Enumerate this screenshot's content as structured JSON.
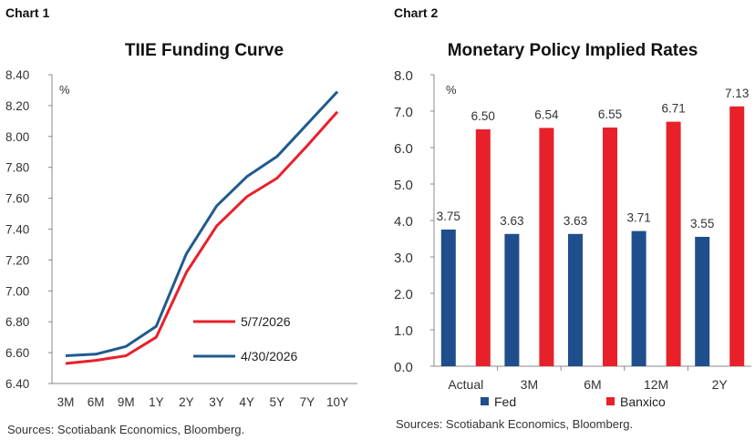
{
  "panels": [
    {
      "label": "Chart 1",
      "source": "Sources: Scotiabank Economics, Bloomberg."
    },
    {
      "label": "Chart 2",
      "source": "Sources: Scotiabank Economics, Bloomberg."
    }
  ],
  "chart_data": [
    {
      "type": "line",
      "title": "TIIE Funding Curve",
      "ylabel": "%",
      "categories": [
        "3M",
        "6M",
        "9M",
        "1Y",
        "2Y",
        "3Y",
        "4Y",
        "5Y",
        "7Y",
        "10Y"
      ],
      "ylim": [
        6.4,
        8.4
      ],
      "yticks": [
        "6.40",
        "6.60",
        "6.80",
        "7.00",
        "7.20",
        "7.40",
        "7.60",
        "7.80",
        "8.00",
        "8.20",
        "8.40"
      ],
      "grid": false,
      "legend_position": "bottom-right",
      "series": [
        {
          "name": "5/7/2026",
          "color": "#e8202a",
          "values": [
            6.53,
            6.55,
            6.58,
            6.7,
            7.12,
            7.42,
            7.61,
            7.73,
            7.94,
            8.16
          ]
        },
        {
          "name": "4/30/2026",
          "color": "#1f5b8f",
          "values": [
            6.58,
            6.59,
            6.64,
            6.77,
            7.24,
            7.55,
            7.74,
            7.87,
            8.08,
            8.29
          ]
        }
      ]
    },
    {
      "type": "bar",
      "title": "Monetary Policy Implied Rates",
      "ylabel": "%",
      "categories": [
        "Actual",
        "3M",
        "6M",
        "12M",
        "2Y"
      ],
      "ylim": [
        0,
        8
      ],
      "yticks": [
        "0.0",
        "1.0",
        "2.0",
        "3.0",
        "4.0",
        "5.0",
        "6.0",
        "7.0",
        "8.0"
      ],
      "grid": false,
      "legend_position": "bottom",
      "series": [
        {
          "name": "Fed",
          "color": "#1f4e8c",
          "values": [
            3.75,
            3.63,
            3.63,
            3.71,
            3.55
          ],
          "labels": [
            "3.75",
            "3.63",
            "3.63",
            "3.71",
            "3.55"
          ]
        },
        {
          "name": "Banxico",
          "color": "#e8202a",
          "values": [
            6.5,
            6.54,
            6.55,
            6.71,
            7.13
          ],
          "labels": [
            "6.50",
            "6.54",
            "6.55",
            "6.71",
            "7.13"
          ]
        }
      ]
    }
  ]
}
